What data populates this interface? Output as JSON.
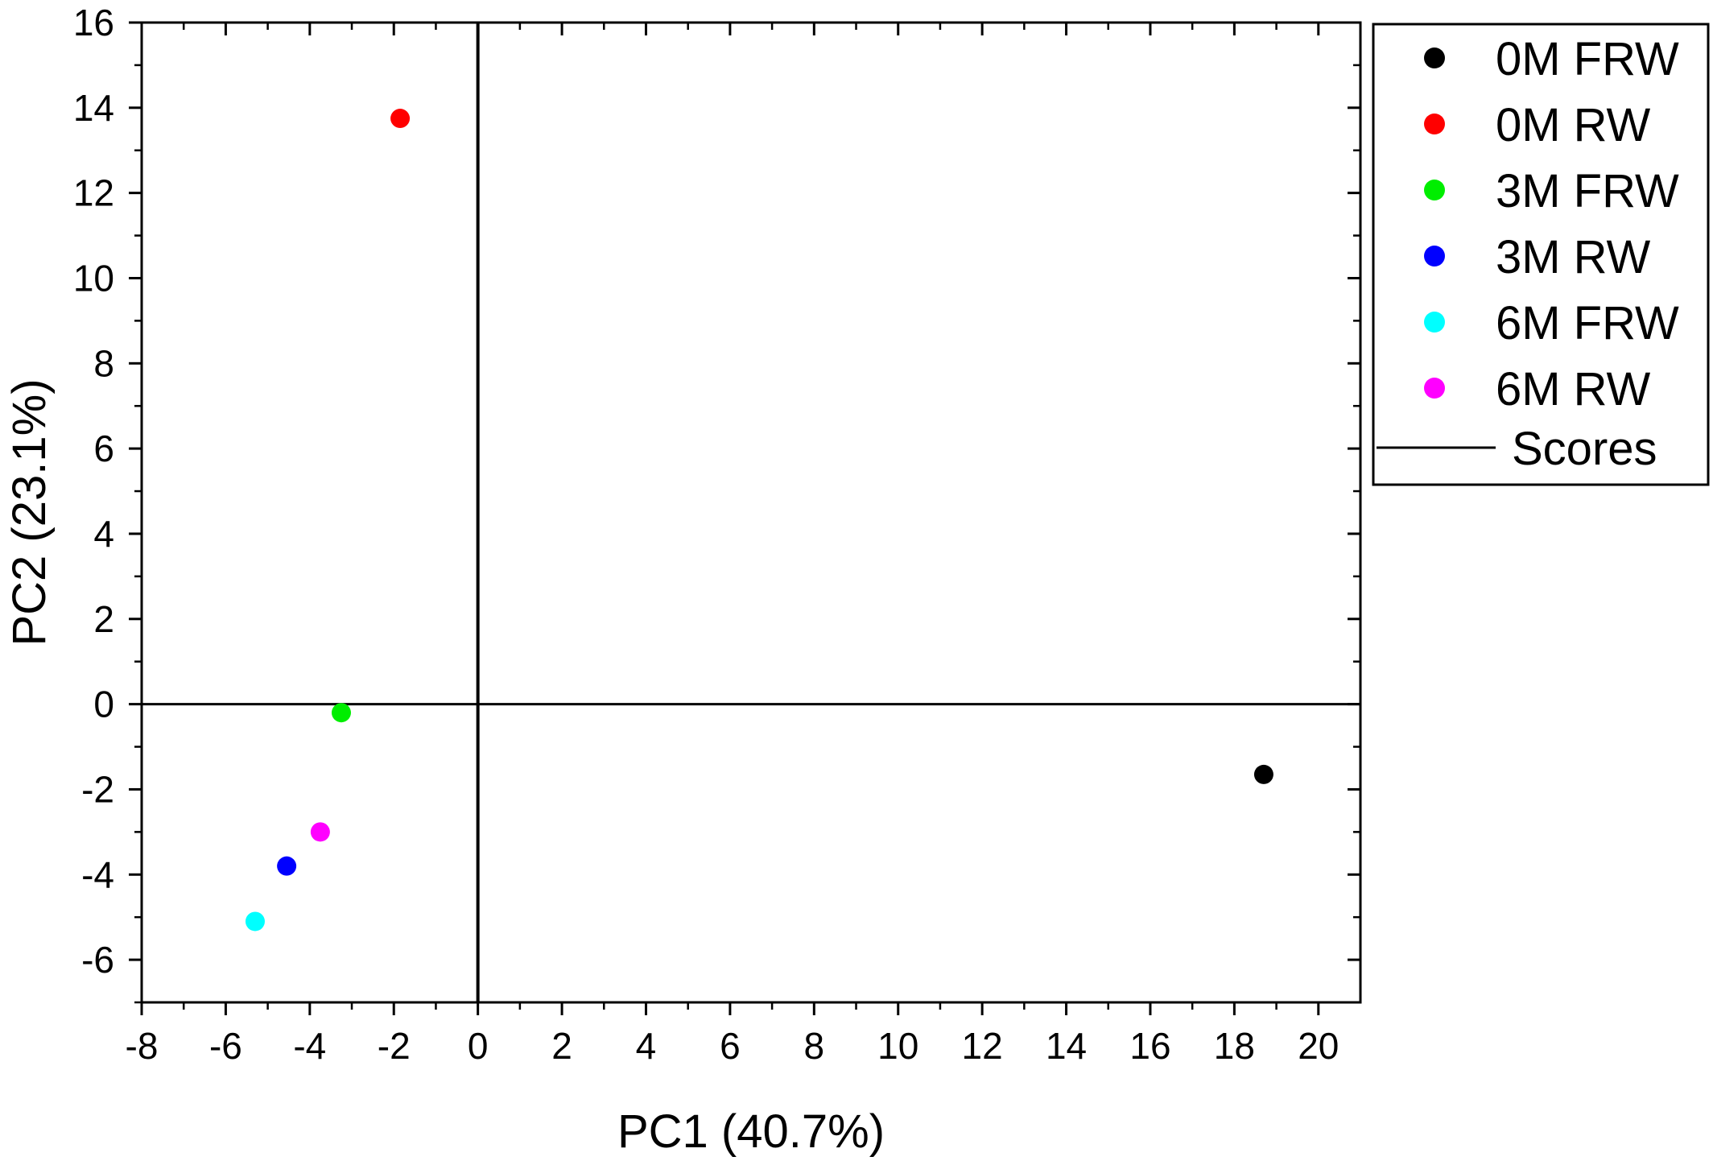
{
  "chart_data": {
    "type": "scatter",
    "xlabel": "PC1 (40.7%)",
    "ylabel": "PC2 (23.1%)",
    "xlim": [
      -8,
      21
    ],
    "ylim": [
      -7,
      16
    ],
    "x_ticks": [
      -8,
      -6,
      -4,
      -2,
      0,
      2,
      4,
      6,
      8,
      10,
      12,
      14,
      16,
      18,
      20
    ],
    "y_ticks": [
      -6,
      -4,
      -2,
      0,
      2,
      4,
      6,
      8,
      10,
      12,
      14,
      16
    ],
    "minor_ticks": true,
    "grid": false,
    "zero_lines": true,
    "legend_position": "outside-top-right",
    "series": [
      {
        "name": "0M FRW",
        "color": "#000000",
        "x": 18.7,
        "y": -1.65
      },
      {
        "name": "0M RW",
        "color": "#ff0000",
        "x": -1.85,
        "y": 13.75
      },
      {
        "name": "3M FRW",
        "color": "#00ee00",
        "x": -3.25,
        "y": -0.2
      },
      {
        "name": "3M RW",
        "color": "#0000ff",
        "x": -4.55,
        "y": -3.8
      },
      {
        "name": "6M FRW",
        "color": "#00ffff",
        "x": -5.3,
        "y": -5.1
      },
      {
        "name": "6M RW",
        "color": "#ff00ff",
        "x": -3.75,
        "y": -3.0
      }
    ],
    "legend_extra": {
      "name": "Scores",
      "symbol": "line",
      "color": "#000000"
    }
  }
}
